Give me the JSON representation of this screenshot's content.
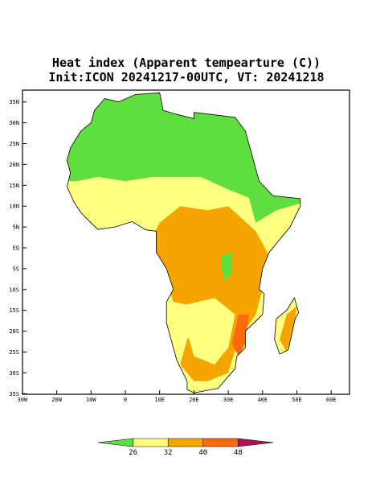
{
  "header": {
    "title": "Heat index (Apparent tempearture (C))",
    "subtitle": "Init:ICON 20241217-00UTC, VT: 20241218"
  },
  "map": {
    "lat_labels": [
      "35N",
      "30N",
      "25N",
      "20N",
      "15N",
      "10N",
      "5N",
      "EQ",
      "5S",
      "10S",
      "15S",
      "20S",
      "25S",
      "30S",
      "35S"
    ],
    "lon_labels": [
      "30W",
      "20W",
      "10W",
      "0",
      "10E",
      "20E",
      "30E",
      "40E",
      "50E",
      "60E"
    ]
  },
  "colorbar": {
    "levels": [
      26,
      32,
      40,
      48
    ],
    "colors": [
      "#5fdf3f",
      "#ffff80",
      "#f5a500",
      "#ff6a10",
      "#b0105a"
    ]
  }
}
